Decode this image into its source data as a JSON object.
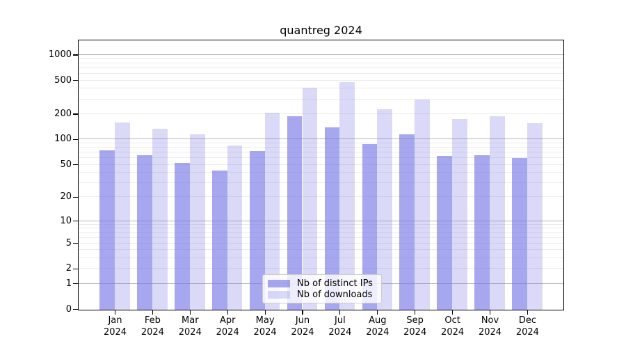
{
  "title": "quantreg 2024",
  "chart_data": {
    "type": "bar",
    "title": "quantreg 2024",
    "categories": [
      "Jan 2024",
      "Feb 2024",
      "Mar 2024",
      "Apr 2024",
      "May 2024",
      "Jun 2024",
      "Jul 2024",
      "Aug 2024",
      "Sep 2024",
      "Oct 2024",
      "Nov 2024",
      "Dec 2024"
    ],
    "series": [
      {
        "name": "Nb of distinct IPs",
        "color": "rgba(120,120,230,0.65)",
        "values": [
          75,
          65,
          53,
          43,
          74,
          192,
          142,
          89,
          116,
          64,
          66,
          61
        ]
      },
      {
        "name": "Nb of downloads",
        "color": "rgba(120,120,230,0.27)",
        "values": [
          160,
          136,
          117,
          85,
          210,
          414,
          481,
          230,
          302,
          178,
          192,
          157
        ]
      }
    ],
    "base_color": "#7878e6",
    "xlabel": "",
    "ylabel": "",
    "y_scale": "log1p",
    "y_ticks": [
      0,
      1,
      2,
      5,
      10,
      20,
      50,
      100,
      200,
      500,
      1000
    ],
    "ylim": [
      0,
      1490
    ],
    "grid": {
      "on": true,
      "major_color": "#b4b4b4",
      "minor_color": "#ebebeb"
    },
    "legend_position": "lower center"
  },
  "legend": {
    "items": [
      {
        "label": "Nb of distinct IPs"
      },
      {
        "label": "Nb of downloads"
      }
    ]
  }
}
